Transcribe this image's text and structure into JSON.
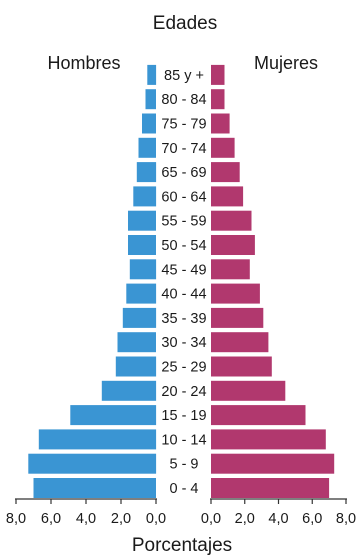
{
  "chart_data": {
    "type": "bar",
    "title": "Edades",
    "xlabel": "Porcentajes",
    "categories": [
      "0 - 4",
      "5 - 9",
      "10 - 14",
      "15 - 19",
      "20 - 24",
      "25 - 29",
      "30 - 34",
      "35 - 39",
      "40 - 44",
      "45 - 49",
      "50 - 54",
      "55 - 59",
      "60 - 64",
      "65 - 69",
      "70 - 74",
      "75 - 79",
      "80 - 84",
      "85 y +"
    ],
    "series": [
      {
        "name": "Hombres",
        "color": "#3a95d3",
        "values": [
          7.0,
          7.3,
          6.7,
          4.9,
          3.1,
          2.3,
          2.2,
          1.9,
          1.7,
          1.5,
          1.6,
          1.6,
          1.3,
          1.1,
          1.0,
          0.8,
          0.6,
          0.5
        ]
      },
      {
        "name": "Mujeres",
        "color": "#b1386e",
        "values": [
          7.0,
          7.3,
          6.8,
          5.6,
          4.4,
          3.6,
          3.4,
          3.1,
          2.9,
          2.3,
          2.6,
          2.4,
          1.9,
          1.7,
          1.4,
          1.1,
          0.8,
          0.8
        ]
      }
    ],
    "left_axis": {
      "ticks": [
        "8,0",
        "6,0",
        "4,0",
        "2,0",
        "0,0"
      ],
      "range": [
        8,
        0
      ]
    },
    "right_axis": {
      "ticks": [
        "0,0",
        "2,0",
        "4,0",
        "6,0",
        "8,0"
      ],
      "range": [
        0,
        8
      ]
    },
    "grid": false,
    "legend": "top"
  }
}
